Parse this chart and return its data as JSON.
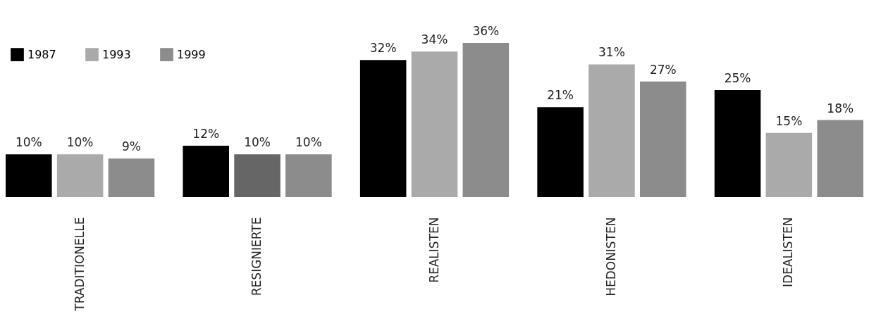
{
  "chart_data": {
    "type": "bar",
    "categories": [
      "TRADITIONELLE",
      "RESIGNIERTE",
      "REALISTEN",
      "HEDONISTEN",
      "IDEALISTEN"
    ],
    "series": [
      {
        "name": "1987",
        "color": "#000000",
        "values": [
          10,
          12,
          32,
          21,
          25
        ],
        "value_labels": [
          "10%",
          "12%",
          "32%",
          "21%",
          "25%"
        ]
      },
      {
        "name": "1993",
        "color": "#aaaaaa",
        "colors": [
          "#aaaaaa",
          "#666666",
          "#aaaaaa",
          "#aaaaaa",
          "#aaaaaa"
        ],
        "values": [
          10,
          10,
          34,
          31,
          15
        ],
        "value_labels": [
          "10%",
          "10%",
          "34%",
          "31%",
          "15%"
        ]
      },
      {
        "name": "1999",
        "color": "#8c8c8c",
        "values": [
          9,
          10,
          36,
          27,
          18
        ],
        "value_labels": [
          "9%",
          "10%",
          "36%",
          "27%",
          "18%"
        ]
      }
    ],
    "legend": "top left",
    "grid": false
  }
}
